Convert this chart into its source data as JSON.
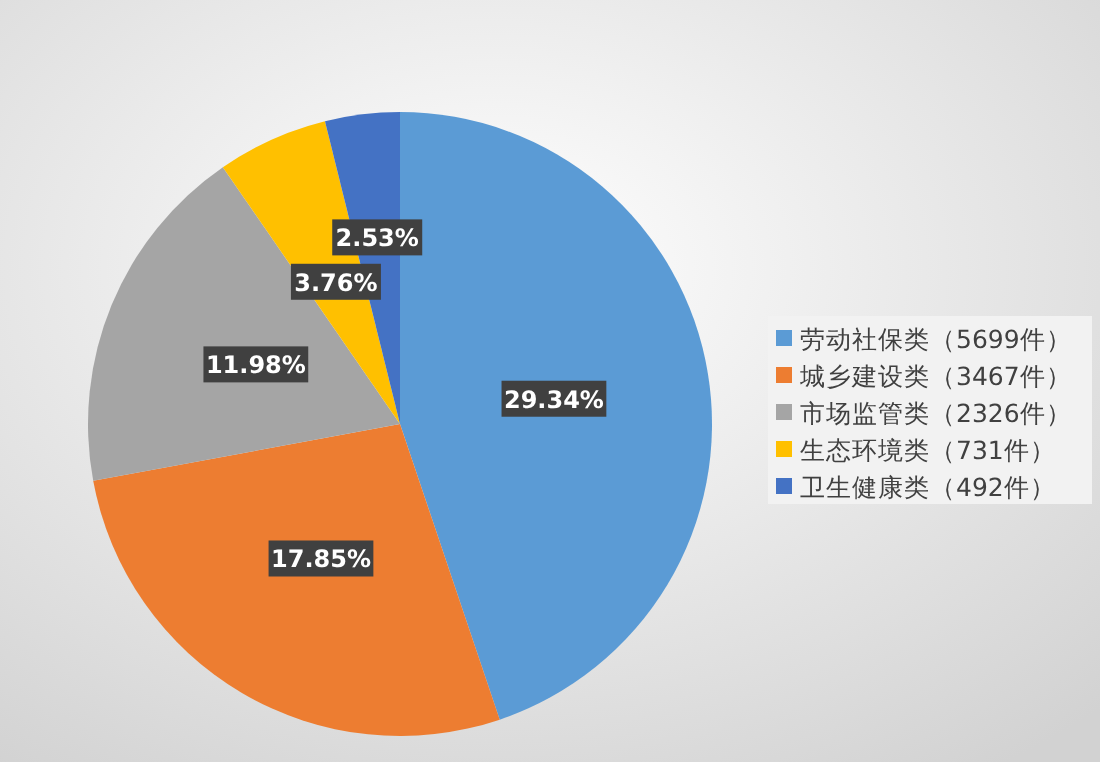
{
  "chart_data": {
    "type": "pie",
    "categories": [
      "劳动社保类（5699件）",
      "城乡建设类（3467件）",
      "市场监管类（2326件）",
      "生态环境类（731件）",
      "卫生健康类（492件）"
    ],
    "values": [
      29.34,
      17.85,
      11.98,
      3.76,
      2.53
    ],
    "value_labels": [
      "29.34%",
      "17.85%",
      "11.98%",
      "3.76%",
      "2.53%"
    ],
    "colors": [
      "#5b9bd5",
      "#ed7d31",
      "#a5a5a5",
      "#ffc000",
      "#4472c4"
    ],
    "legend": "right"
  }
}
